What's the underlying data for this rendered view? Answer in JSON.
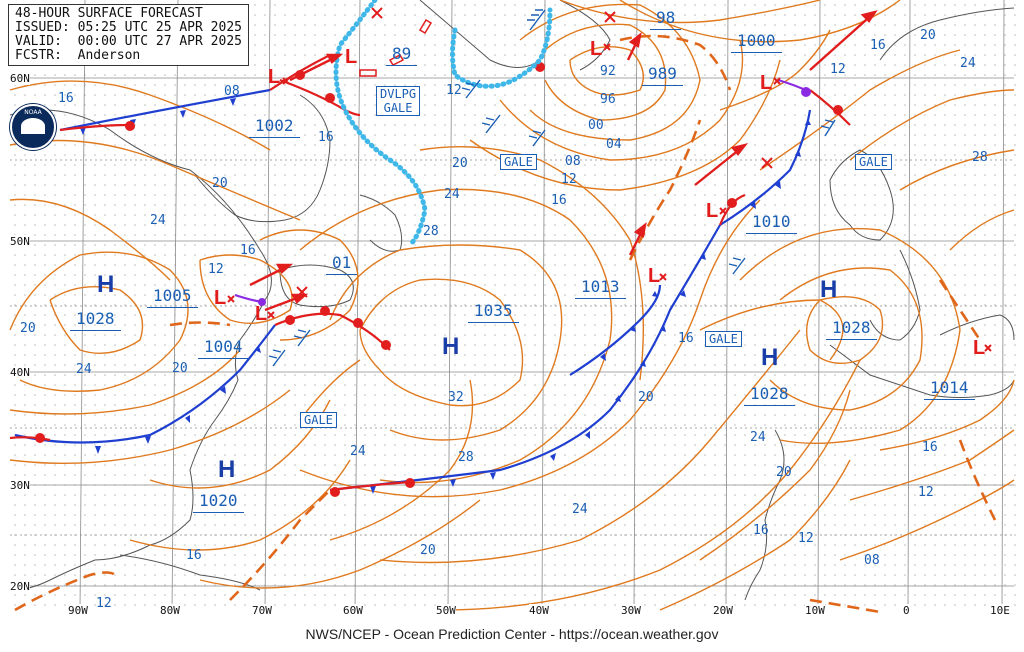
{
  "header": {
    "title": "48-HOUR SURFACE FORECAST",
    "issued": "ISSUED: 05:25 UTC 25 APR 2025",
    "valid": "VALID:  00:00 UTC 27 APR 2025",
    "forecaster": "FCSTR:  Anderson"
  },
  "footer": "NWS/NCEP - Ocean Prediction Center - https://ocean.weather.gov",
  "logo": {
    "text": "NOAA"
  },
  "grid": {
    "lat_labels": [
      "60N",
      "50N",
      "40N",
      "30N",
      "20N"
    ],
    "lon_labels": [
      "90W",
      "80W",
      "70W",
      "60W",
      "50W",
      "40W",
      "30W",
      "20W",
      "10W",
      "0",
      "10E"
    ]
  },
  "highs": [
    {
      "label": "H",
      "pressure": "1028"
    },
    {
      "label": "H",
      "pressure": "1020"
    },
    {
      "label": "H",
      "pressure": "1035"
    },
    {
      "label": "H",
      "pressure": "1028"
    },
    {
      "label": "H",
      "pressure": "1028"
    }
  ],
  "lows": [
    {
      "label": "L",
      "pressure": "1002"
    },
    {
      "label": "L",
      "pressure": "89"
    },
    {
      "label": "L",
      "pressure": "989"
    },
    {
      "label": "L",
      "pressure": "1000"
    },
    {
      "label": "L",
      "pressure": "1005"
    },
    {
      "label": "L",
      "pressure": "1004"
    },
    {
      "label": "L",
      "pressure": "1010"
    },
    {
      "label": "L",
      "pressure": "1013"
    },
    {
      "label": "L",
      "pressure": "1014"
    }
  ],
  "isobar_labels": [
    "16",
    "08",
    "20",
    "24",
    "20",
    "16",
    "24",
    "12",
    "16",
    "01",
    "20",
    "24",
    "28",
    "32",
    "28",
    "24",
    "20",
    "12",
    "92",
    "96",
    "00",
    "04",
    "08",
    "12",
    "16",
    "98",
    "12",
    "16",
    "20",
    "24",
    "28",
    "20",
    "16",
    "24",
    "20",
    "16",
    "12",
    "08",
    "16",
    "12",
    "20",
    "12",
    "16",
    "24"
  ],
  "warnings": [
    {
      "text": "DVLPG GALE",
      "line1": "DVLPG",
      "line2": "GALE"
    },
    {
      "text": "GALE"
    },
    {
      "text": "GALE"
    },
    {
      "text": "GALE"
    },
    {
      "text": "GALE"
    }
  ],
  "colors": {
    "isobar": "#e07a1f",
    "cold_front": "#1f3fd1",
    "warm_front": "#e11d1d",
    "occluded": "#8a2be2",
    "trough": "#e0661a",
    "ice_edge": "#3fb7e8",
    "land_outline": "#555555",
    "text": "#1a5fb4"
  }
}
